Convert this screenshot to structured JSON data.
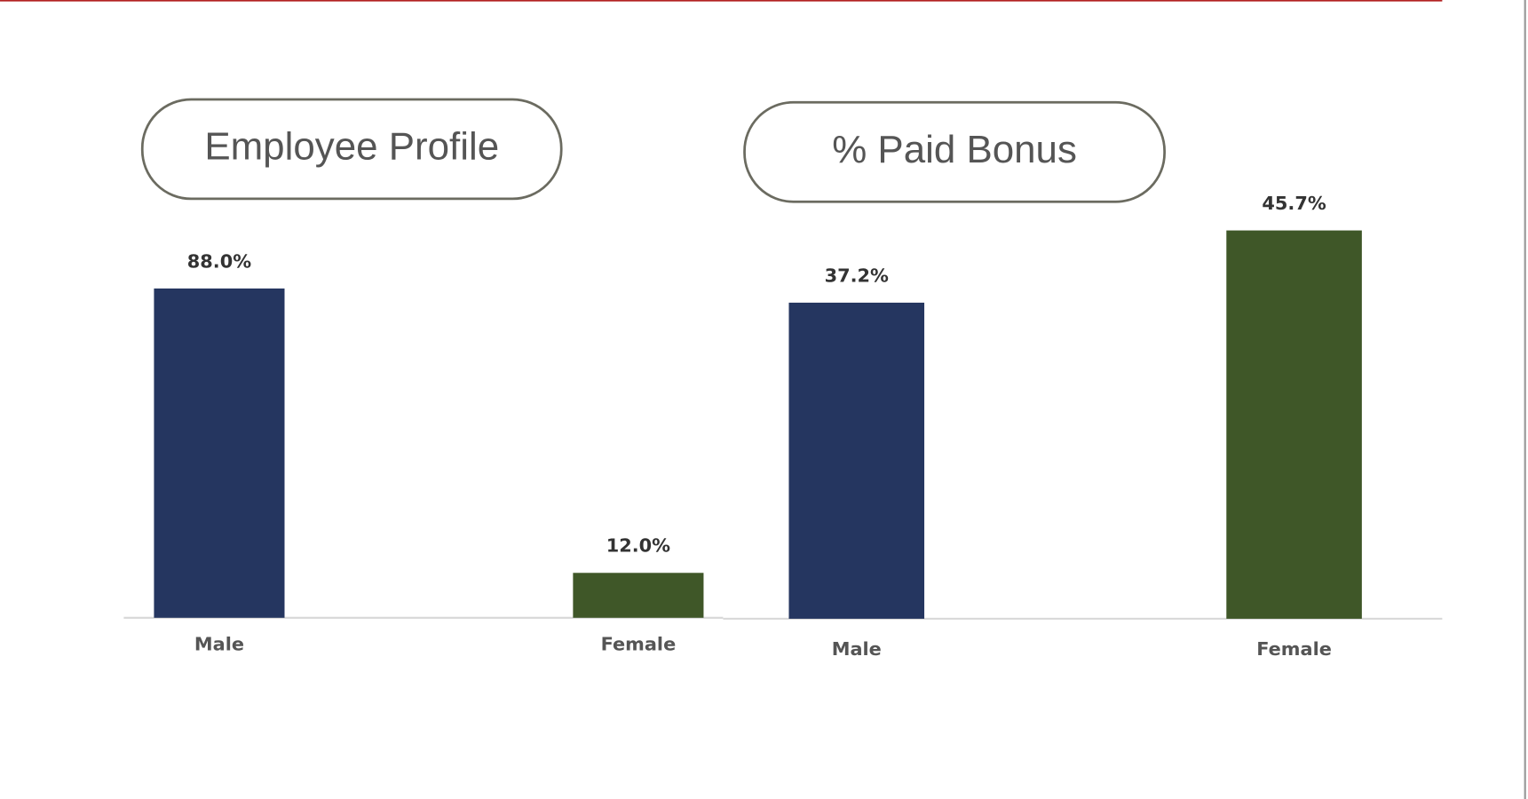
{
  "chart_data": [
    {
      "type": "bar",
      "title": "Employee Profile",
      "categories": [
        "Male",
        "Female"
      ],
      "values": [
        88.0,
        12.0
      ],
      "value_labels": [
        "88.0%",
        "12.0%"
      ],
      "colors": [
        "#253660",
        "#3f5728"
      ],
      "ylim": [
        0,
        100
      ]
    },
    {
      "type": "bar",
      "title": "% Paid Bonus",
      "categories": [
        "Male",
        "Female"
      ],
      "values": [
        37.2,
        45.7
      ],
      "value_labels": [
        "37.2%",
        "45.7%"
      ],
      "colors": [
        "#253660",
        "#3f5728"
      ],
      "ylim": [
        0,
        50
      ]
    }
  ]
}
